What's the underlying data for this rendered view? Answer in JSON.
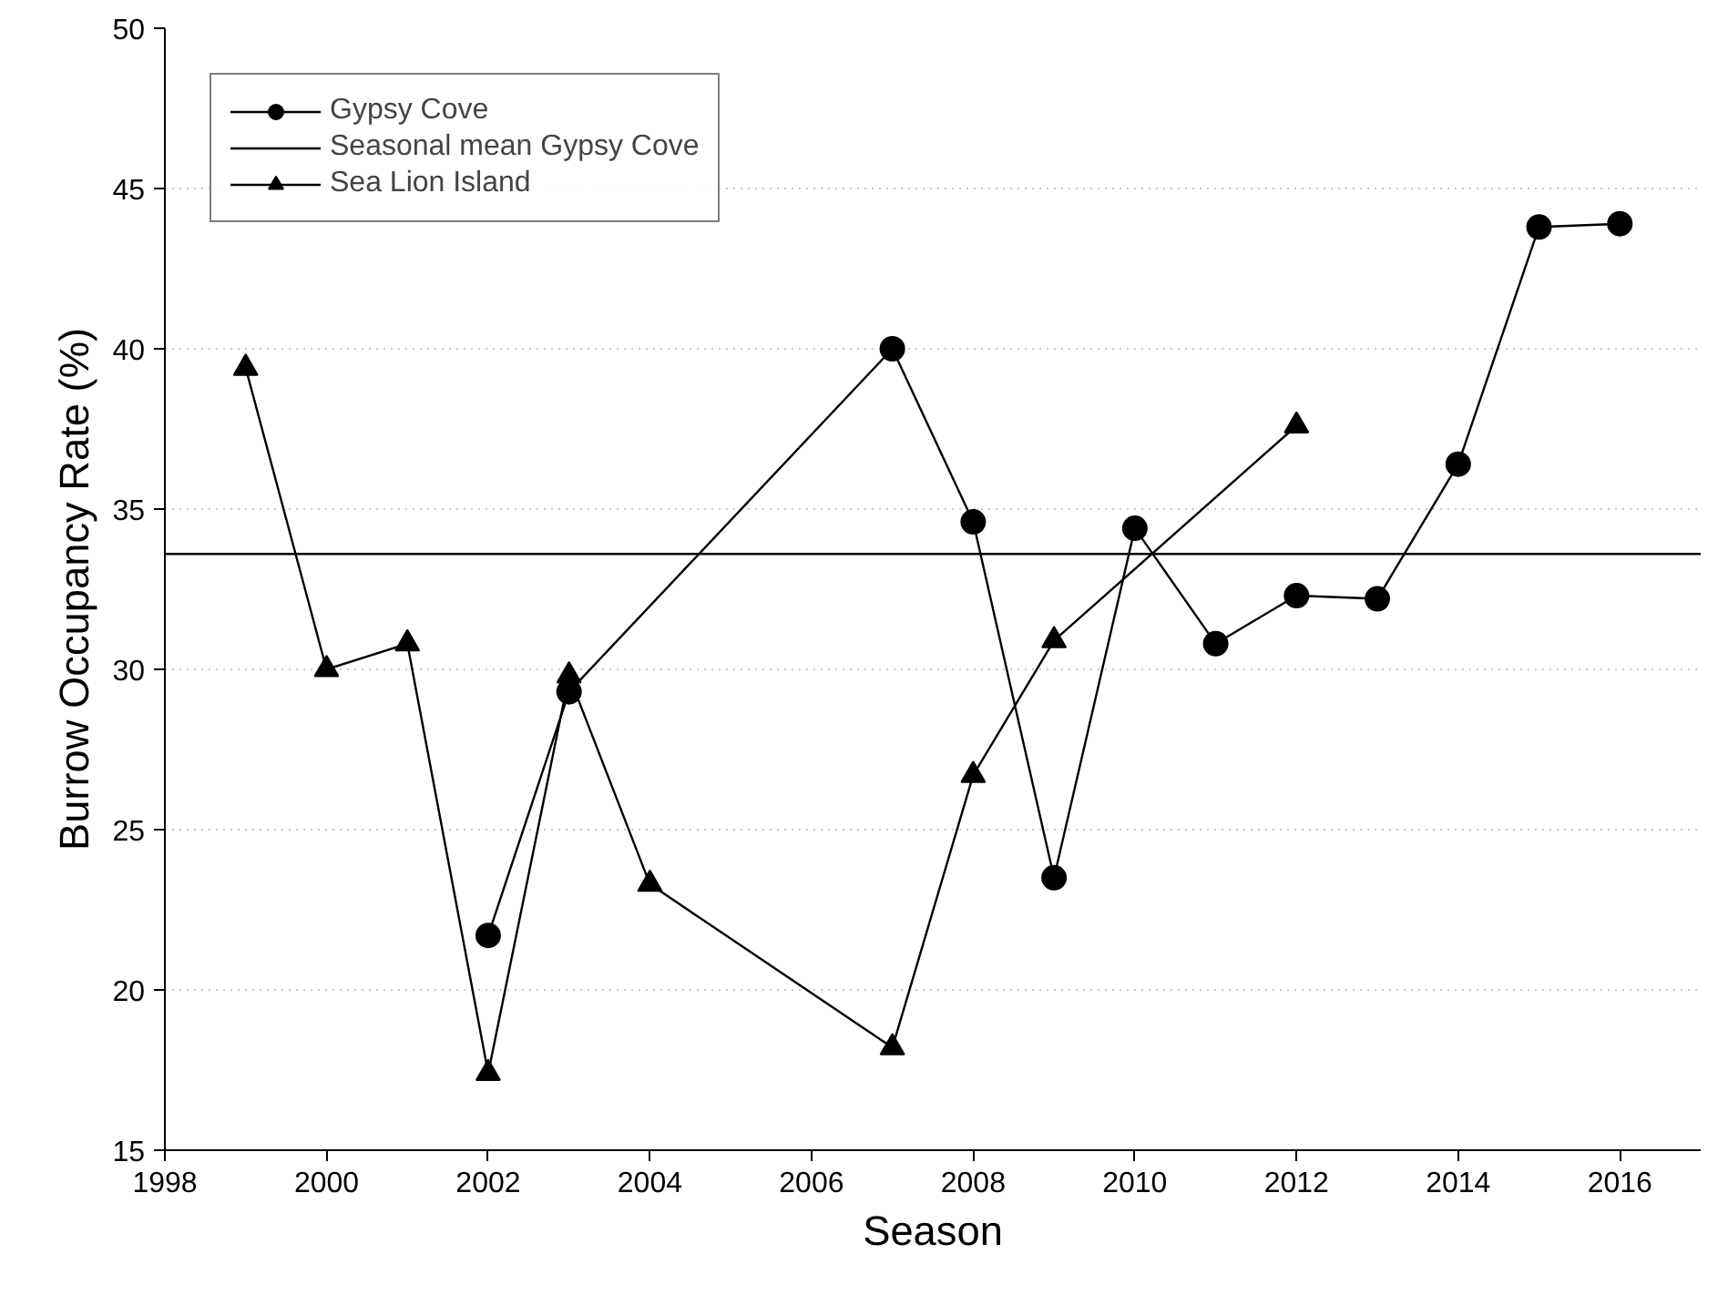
{
  "chart_data": {
    "type": "line",
    "xlabel": "Season",
    "ylabel": "Burrow Occupancy Rate (%)",
    "xlim": [
      1998,
      2017
    ],
    "xticks": [
      1998,
      2000,
      2002,
      2004,
      2006,
      2008,
      2010,
      2012,
      2014,
      2016
    ],
    "ylim": [
      15,
      50
    ],
    "yticks": [
      15,
      20,
      25,
      30,
      35,
      40,
      45,
      50
    ],
    "grid": "y",
    "legend": "top left",
    "series": [
      {
        "name": "Gypsy Cove",
        "color": "#000000",
        "marker": "circle",
        "x": [
          2002,
          2003,
          2007,
          2008,
          2009,
          2010,
          2011,
          2012,
          2013,
          2014,
          2015,
          2016
        ],
        "values": [
          21.7,
          29.3,
          40.0,
          34.6,
          23.5,
          34.4,
          30.8,
          32.3,
          32.2,
          36.4,
          43.8,
          43.9
        ]
      },
      {
        "name": "Seasonal mean Gypsy Cove",
        "color": "#000000",
        "marker": "none",
        "x": [
          1998,
          2017
        ],
        "values": [
          33.6,
          33.6
        ]
      },
      {
        "name": "Sea Lion Island",
        "color": "#000000",
        "marker": "triangle",
        "x": [
          1999,
          2000,
          2001,
          2002,
          2003,
          2004,
          2007,
          2008,
          2009,
          2012
        ],
        "values": [
          39.4,
          30.0,
          30.8,
          17.4,
          29.8,
          23.3,
          18.2,
          26.7,
          30.9,
          37.6
        ]
      }
    ]
  }
}
